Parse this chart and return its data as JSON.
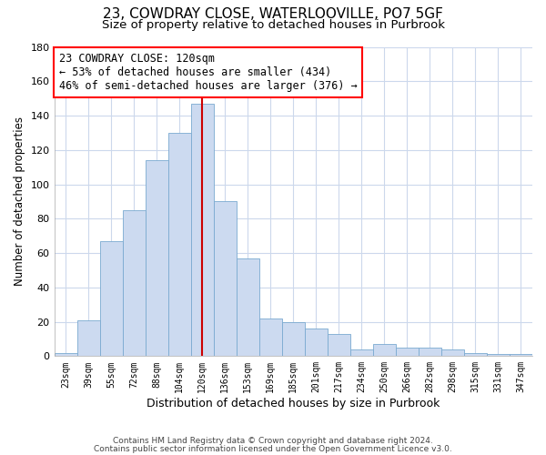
{
  "title": "23, COWDRAY CLOSE, WATERLOOVILLE, PO7 5GF",
  "subtitle": "Size of property relative to detached houses in Purbrook",
  "xlabel": "Distribution of detached houses by size in Purbrook",
  "ylabel": "Number of detached properties",
  "footnote1": "Contains HM Land Registry data © Crown copyright and database right 2024.",
  "footnote2": "Contains public sector information licensed under the Open Government Licence v3.0.",
  "annotation_line1": "23 COWDRAY CLOSE: 120sqm",
  "annotation_line2": "← 53% of detached houses are smaller (434)",
  "annotation_line3": "46% of semi-detached houses are larger (376) →",
  "bar_labels": [
    "23sqm",
    "39sqm",
    "55sqm",
    "72sqm",
    "88sqm",
    "104sqm",
    "120sqm",
    "136sqm",
    "153sqm",
    "169sqm",
    "185sqm",
    "201sqm",
    "217sqm",
    "234sqm",
    "250sqm",
    "266sqm",
    "282sqm",
    "298sqm",
    "315sqm",
    "331sqm",
    "347sqm"
  ],
  "bar_values": [
    2,
    21,
    67,
    85,
    114,
    130,
    147,
    90,
    57,
    22,
    20,
    16,
    13,
    4,
    7,
    5,
    5,
    4,
    2,
    1,
    1
  ],
  "bar_color": "#ccdaf0",
  "bar_edge_color": "#7aaad0",
  "marker_color": "#cc0000",
  "ylim": [
    0,
    180
  ],
  "yticks": [
    0,
    20,
    40,
    60,
    80,
    100,
    120,
    140,
    160,
    180
  ],
  "title_fontsize": 11,
  "subtitle_fontsize": 9.5,
  "xlabel_fontsize": 9,
  "ylabel_fontsize": 8.5,
  "annotation_fontsize": 8.5,
  "tick_fontsize": 7,
  "footnote_fontsize": 6.5,
  "background_color": "#ffffff",
  "grid_color": "#ccd8ec"
}
